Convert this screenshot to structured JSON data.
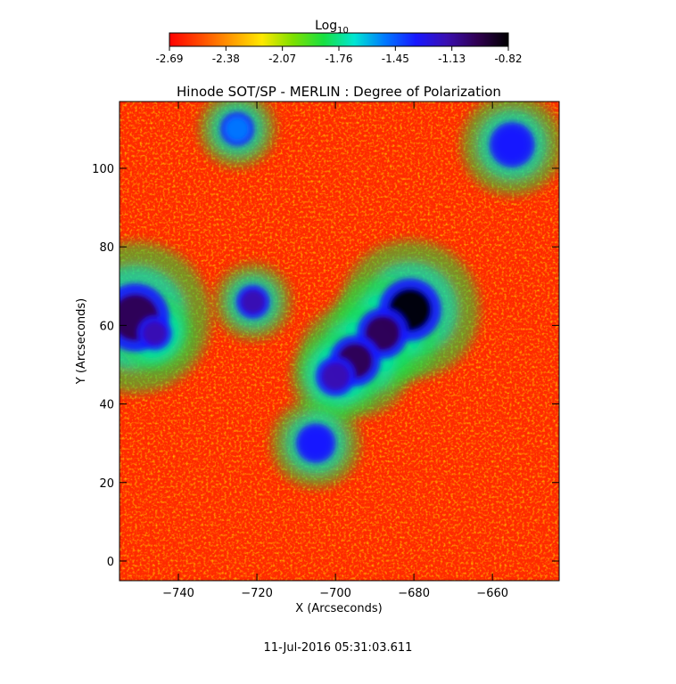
{
  "chart_data": {
    "type": "heatmap",
    "title": "Hinode SOT/SP - MERLIN : Degree of Polarization",
    "xlabel": "X (Arcseconds)",
    "ylabel": "Y (Arcseconds)",
    "xlim": [
      -755,
      -643
    ],
    "ylim": [
      -5,
      117
    ],
    "x_ticks": [
      -740,
      -720,
      -700,
      -680,
      -660
    ],
    "y_ticks": [
      0,
      20,
      40,
      60,
      80,
      100
    ],
    "colorbar": {
      "label": "Log",
      "label_subscript": "10",
      "range": [
        -2.69,
        -0.82
      ],
      "ticks": [
        "-2.69",
        "-2.38",
        "-2.07",
        "-1.76",
        "-1.45",
        "-1.13",
        "-0.82"
      ],
      "colors": [
        "#ff0000",
        "#ff4a00",
        "#ff9a00",
        "#ffe800",
        "#7ee000",
        "#18e040",
        "#00e6d2",
        "#0078ff",
        "#1818ff",
        "#3a0fb0",
        "#300050",
        "#000000"
      ]
    },
    "features": [
      {
        "x": -681,
        "y": 64,
        "r": 5.5,
        "value": -0.9
      },
      {
        "x": -688,
        "y": 58,
        "r": 4.5,
        "value": -1.0
      },
      {
        "x": -695,
        "y": 51,
        "r": 4.5,
        "value": -0.95
      },
      {
        "x": -700,
        "y": 47,
        "r": 3.5,
        "value": -1.1
      },
      {
        "x": -721,
        "y": 66,
        "r": 3.0,
        "value": -1.15
      },
      {
        "x": -751,
        "y": 62,
        "r": 6.0,
        "value": -1.05
      },
      {
        "x": -746,
        "y": 58,
        "r": 3.0,
        "value": -1.1
      },
      {
        "x": -705,
        "y": 30,
        "r": 3.5,
        "value": -1.35
      },
      {
        "x": -725,
        "y": 110,
        "r": 3.0,
        "value": -1.5
      },
      {
        "x": -655,
        "y": 106,
        "r": 4.0,
        "value": -1.4
      }
    ]
  },
  "timestamp": "11-Jul-2016 05:31:03.611"
}
